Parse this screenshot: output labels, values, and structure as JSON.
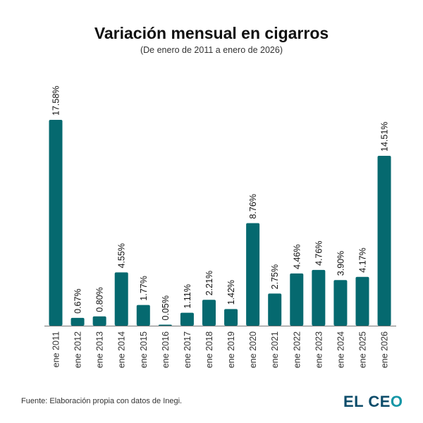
{
  "chart_data": {
    "type": "bar",
    "title": "Variación mensual en cigarros",
    "subtitle": "(De enero de 2011 a enero de 2026)",
    "xlabel": "",
    "ylabel": "",
    "categories": [
      "ene 2011",
      "ene 2012",
      "ene 2013",
      "ene 2014",
      "ene 2015",
      "ene 2016",
      "ene 2017",
      "ene 2018",
      "ene 2019",
      "ene 2020",
      "ene 2021",
      "ene 2022",
      "ene 2023",
      "ene 2024",
      "ene 2025",
      "ene 2026"
    ],
    "values": [
      17.58,
      0.67,
      0.8,
      4.55,
      1.77,
      0.05,
      1.11,
      2.21,
      1.42,
      8.76,
      2.75,
      4.46,
      4.76,
      3.9,
      4.17,
      14.51
    ],
    "labels": [
      "17.58%",
      "0.67%",
      "0.80%",
      "4.55%",
      "1.77%",
      "0.05%",
      "1.11%",
      "2.21%",
      "1.42%",
      "8.76%",
      "2.75%",
      "4.46%",
      "4.76%",
      "3.90%",
      "4.17%",
      "14.51%"
    ],
    "ylim": [
      0,
      17.58
    ],
    "grid": false,
    "bar_color": "#05696f"
  },
  "footer": {
    "source": "Fuente: Elaboración propia con datos de Inegi.",
    "logo": "EL CEO"
  }
}
